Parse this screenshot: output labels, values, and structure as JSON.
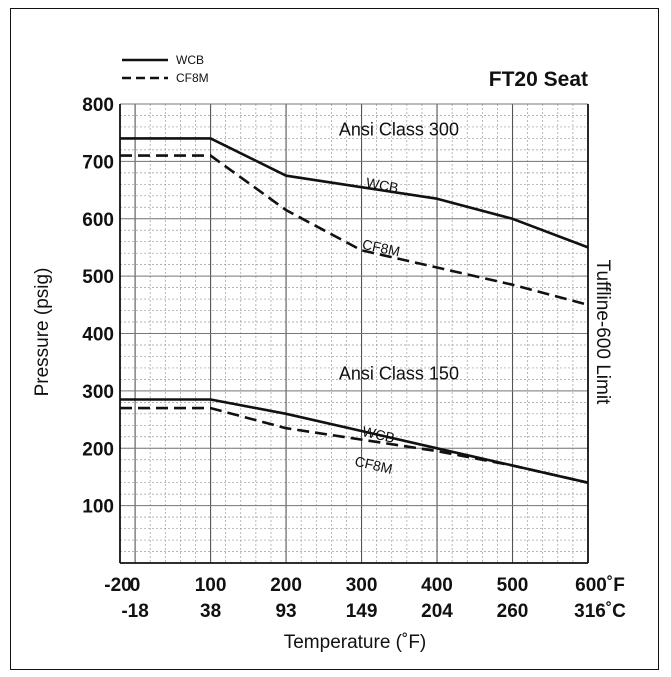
{
  "chart_data": {
    "type": "line",
    "title": "FT20 Seat",
    "xlabel": "Temperature (˚F)",
    "ylabel": "Pressure (psig)",
    "right_label": "Tuffline-600 Limit",
    "xlim": [
      -20,
      600
    ],
    "ylim": [
      0,
      800
    ],
    "grid": true,
    "legend_position": "top-left",
    "x_ticks": [
      -20,
      0,
      100,
      200,
      300,
      400,
      500,
      600
    ],
    "x_tick_labels_f": [
      "-20",
      "0",
      "100",
      "200",
      "300",
      "400",
      "500",
      "600˚F"
    ],
    "x_tick_labels_c": [
      "-18",
      "38",
      "93",
      "149",
      "204",
      "260",
      "316˚C"
    ],
    "x_tick_positions_c": [
      0,
      100,
      200,
      300,
      400,
      500,
      600
    ],
    "y_ticks": [
      100,
      200,
      300,
      400,
      500,
      600,
      700,
      800
    ],
    "y_tick_labels": [
      "100",
      "200",
      "300",
      "400",
      "500",
      "600",
      "700",
      "800"
    ],
    "legend": [
      {
        "name": "WCB",
        "style": "solid"
      },
      {
        "name": "CF8M",
        "style": "dashed"
      }
    ],
    "groups": [
      {
        "name": "Ansi Class 300",
        "label_x": 270,
        "label_y": 745
      },
      {
        "name": "Ansi Class 150",
        "label_x": 270,
        "label_y": 320
      }
    ],
    "series": [
      {
        "name": "WCB",
        "group": "Ansi Class 300",
        "style": "solid",
        "label_x": 305,
        "label_y": 655,
        "label_rotation": 10,
        "x": [
          -20,
          100,
          200,
          300,
          400,
          500,
          600
        ],
        "y": [
          740,
          740,
          675,
          655,
          635,
          600,
          550
        ]
      },
      {
        "name": "CF8M",
        "group": "Ansi Class 300",
        "style": "dashed",
        "label_x": 300,
        "label_y": 548,
        "label_rotation": 12,
        "x": [
          -20,
          100,
          200,
          300,
          400,
          500,
          600
        ],
        "y": [
          710,
          710,
          615,
          545,
          515,
          485,
          450
        ]
      },
      {
        "name": "WCB",
        "group": "Ansi Class 150",
        "style": "solid",
        "label_x": 300,
        "label_y": 222,
        "label_rotation": 13,
        "x": [
          -20,
          100,
          200,
          300,
          400,
          500,
          600
        ],
        "y": [
          285,
          285,
          260,
          230,
          200,
          170,
          140
        ]
      },
      {
        "name": "CF8M",
        "group": "Ansi Class 150",
        "style": "dashed",
        "label_x": 290,
        "label_y": 170,
        "label_rotation": 13,
        "x": [
          -20,
          100,
          200,
          300,
          400,
          500,
          600
        ],
        "y": [
          270,
          270,
          235,
          215,
          195,
          170,
          140
        ]
      }
    ]
  }
}
